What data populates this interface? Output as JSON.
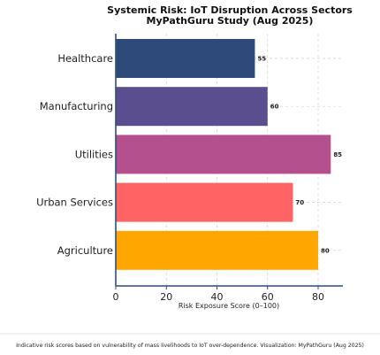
{
  "chart_data": {
    "type": "bar",
    "orientation": "horizontal",
    "title": "Systemic Risk: IoT Disruption Across Sectors",
    "subtitle": "MyPathGuru Study (Aug 2025)",
    "xlabel": "Risk Exposure Score (0–100)",
    "ylabel": "",
    "xlim": [
      0,
      90
    ],
    "xticks": [
      0,
      20,
      40,
      60,
      80
    ],
    "grid": true,
    "categories": [
      "Healthcare",
      "Manufacturing",
      "Utilities",
      "Urban Services",
      "Agriculture"
    ],
    "values": [
      55,
      60,
      85,
      70,
      80
    ],
    "colors": [
      "#2e4a7a",
      "#5a4e8f",
      "#b5508f",
      "#ff6363",
      "#ffa600"
    ],
    "caption": "Indicative risk scores based on vulnerability of mass livelihoods to IoT over-dependence. Visualization: MyPathGuru (Aug 2025)"
  }
}
